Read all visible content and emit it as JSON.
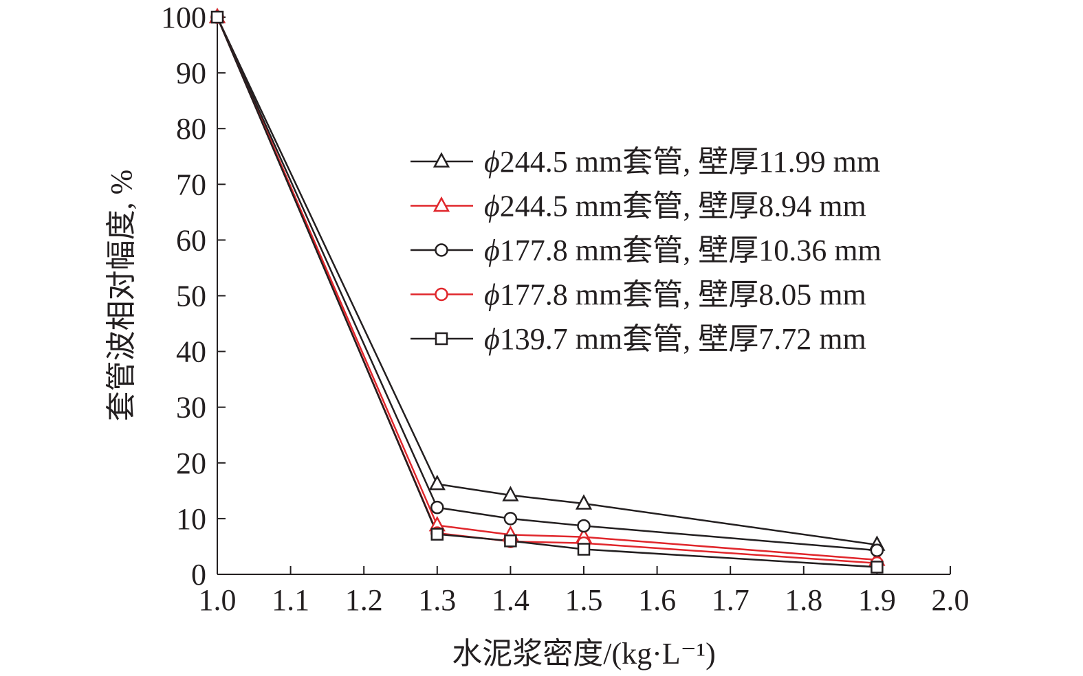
{
  "chart_data": {
    "type": "line",
    "title": "",
    "xlabel": "水泥浆密度/(kg·L⁻¹)",
    "ylabel": "套管波相对幅度, %",
    "xlim": [
      1.0,
      2.0
    ],
    "ylim": [
      0,
      100
    ],
    "x_ticks": [
      1.0,
      1.1,
      1.2,
      1.3,
      1.4,
      1.5,
      1.6,
      1.7,
      1.8,
      1.9,
      2.0
    ],
    "x_tick_labels": [
      "1.0",
      "1.1",
      "1.2",
      "1.3",
      "1.4",
      "1.5",
      "1.6",
      "1.7",
      "1.8",
      "1.9",
      "2.0"
    ],
    "y_ticks": [
      0,
      10,
      20,
      30,
      40,
      50,
      60,
      70,
      80,
      90,
      100
    ],
    "y_tick_labels": [
      "0",
      "10",
      "20",
      "30",
      "40",
      "50",
      "60",
      "70",
      "80",
      "90",
      "100"
    ],
    "grid": false,
    "legend_position": "upper-right",
    "x": [
      1.0,
      1.3,
      1.4,
      1.5,
      1.9
    ],
    "series": [
      {
        "name": "ϕ244.5 mm套管, 壁厚11.99 mm",
        "marker": "triangle",
        "color": "#231f20",
        "values": [
          100,
          16.2,
          14.2,
          12.7,
          5.3
        ]
      },
      {
        "name": "ϕ244.5 mm套管, 壁厚8.94 mm",
        "marker": "triangle",
        "color": "#e0262b",
        "values": [
          100,
          8.8,
          7.1,
          6.7,
          2.6
        ]
      },
      {
        "name": "ϕ177.8 mm套管, 壁厚10.36 mm",
        "marker": "circle",
        "color": "#231f20",
        "values": [
          100,
          12.0,
          10.0,
          8.7,
          4.3
        ]
      },
      {
        "name": "ϕ177.8 mm套管, 壁厚8.05 mm",
        "marker": "circle",
        "color": "#e0262b",
        "values": [
          100,
          7.4,
          5.9,
          5.6,
          2.0
        ]
      },
      {
        "name": "ϕ139.7 mm套管, 壁厚7.72 mm",
        "marker": "square",
        "color": "#231f20",
        "values": [
          100,
          7.2,
          6.0,
          4.5,
          1.3
        ]
      }
    ]
  }
}
